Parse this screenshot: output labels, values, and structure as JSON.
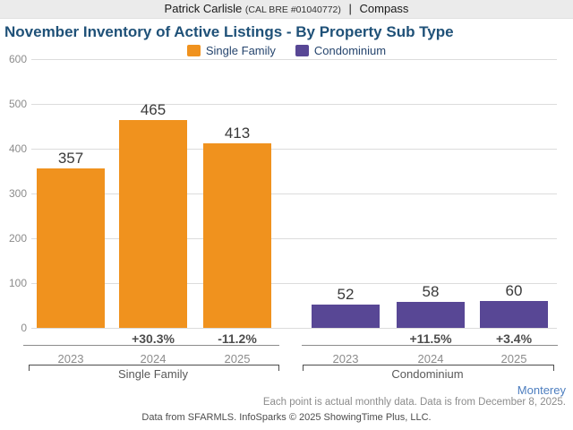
{
  "header": {
    "agent": "Patrick Carlisle",
    "license": "(CAL BRE #01040772)",
    "separator": "|",
    "brand": "Compass"
  },
  "title": "November Inventory of Active Listings - By Property Sub Type",
  "legend": [
    {
      "label": "Single Family",
      "color": "#f0921e"
    },
    {
      "label": "Condominium",
      "color": "#584795"
    }
  ],
  "chart_data": {
    "type": "bar",
    "title": "November Inventory of Active Listings - By Property Sub Type",
    "ylim": [
      0,
      600
    ],
    "yticks": [
      0,
      100,
      200,
      300,
      400,
      500,
      600
    ],
    "grid": true,
    "legend_position": "top",
    "categories": [
      "2023",
      "2024",
      "2025"
    ],
    "groups": [
      {
        "name": "Single Family",
        "color": "#f0921e",
        "bars": [
          {
            "year": "2023",
            "value": 357,
            "change": ""
          },
          {
            "year": "2024",
            "value": 465,
            "change": "+30.3%"
          },
          {
            "year": "2025",
            "value": 413,
            "change": "-11.2%"
          }
        ]
      },
      {
        "name": "Condominium",
        "color": "#584795",
        "bars": [
          {
            "year": "2023",
            "value": 52,
            "change": ""
          },
          {
            "year": "2024",
            "value": 58,
            "change": "+11.5%"
          },
          {
            "year": "2025",
            "value": 60,
            "change": "+3.4%"
          }
        ]
      }
    ]
  },
  "footer": {
    "region": "Monterey",
    "note": "Each point is actual monthly data. Data is from December 8, 2025.",
    "copyright": "Data from SFARMLS. InfoSparks © 2025 ShowingTime Plus, LLC."
  }
}
